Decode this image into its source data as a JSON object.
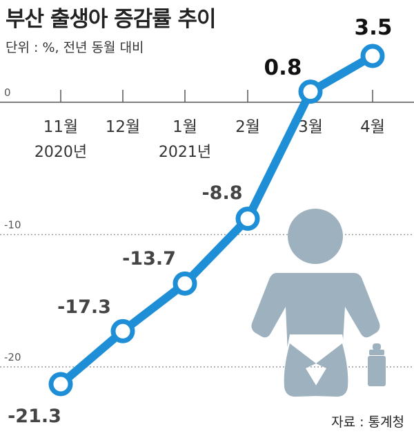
{
  "title": "부산 출생아 증감률 추이",
  "unit": "단위 : %, 전년 동월 대비",
  "source": "자료 : 통계청",
  "icons": {
    "baby": "baby-icon",
    "bottle": "baby-bottle-icon"
  },
  "colors": {
    "line": "#1e8fd6",
    "icon": "#9eb1bf",
    "text": "#333333"
  },
  "chart_data": {
    "type": "line",
    "categories": [
      "11월",
      "12월",
      "1월",
      "2월",
      "3월",
      "4월"
    ],
    "year_labels": [
      "2020년",
      "",
      "2021년",
      "",
      "",
      ""
    ],
    "values": [
      -21.3,
      -17.3,
      -13.7,
      -8.8,
      0.8,
      3.5
    ],
    "value_labels": [
      "-21.3",
      "-17.3",
      "-13.7",
      "-8.8",
      "0.8",
      "3.5"
    ],
    "yticks": [
      0,
      -10,
      -20
    ],
    "ytick_labels": [
      "0",
      "-10",
      "-20"
    ],
    "ylim": [
      -22.5,
      4.0
    ],
    "grid": true
  }
}
